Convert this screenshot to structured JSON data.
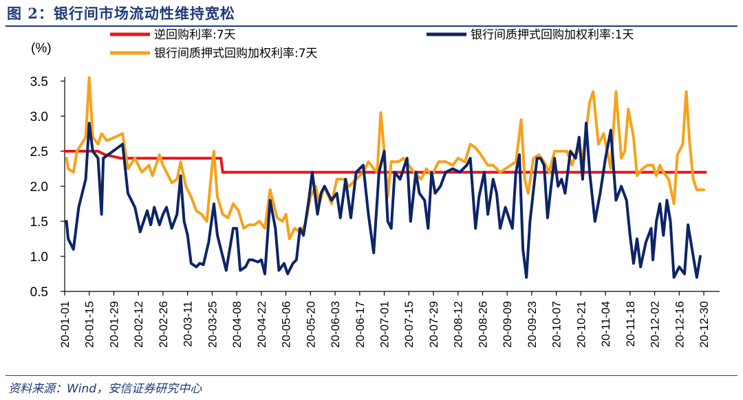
{
  "figure": {
    "title": "图 2：银行间市场流动性维持宽松",
    "source": "资料来源：Wind，安信证券研究中心"
  },
  "chart_data": {
    "type": "line",
    "unit_label": "(%)",
    "ylim": [
      0.5,
      3.5
    ],
    "y_ticks": [
      "3.5",
      "3.0",
      "2.5",
      "2.0",
      "1.5",
      "1.0",
      "0.5"
    ],
    "x_ticks": [
      "20-01-01",
      "20-01-15",
      "20-01-29",
      "20-02-12",
      "20-02-26",
      "20-03-11",
      "20-03-25",
      "20-04-08",
      "20-04-22",
      "20-05-06",
      "20-05-20",
      "20-06-03",
      "20-06-17",
      "20-07-01",
      "20-07-15",
      "20-07-29",
      "20-08-12",
      "20-08-26",
      "20-09-09",
      "20-09-23",
      "20-10-07",
      "20-10-21",
      "20-11-04",
      "20-11-18",
      "20-12-02",
      "20-12-16",
      "20-12-30"
    ],
    "legend_position": "top",
    "series": [
      {
        "name": "逆回购利率:7天",
        "color": "#e8141b",
        "points": [
          [
            "20-01-01",
            2.5
          ],
          [
            "20-01-20",
            2.5
          ],
          [
            "20-01-24",
            2.45
          ],
          [
            "20-02-02",
            2.4
          ],
          [
            "20-03-30",
            2.4
          ],
          [
            "20-03-31",
            2.2
          ],
          [
            "20-12-31",
            2.2
          ]
        ]
      },
      {
        "name": "银行间质押式回购加权利率:1天",
        "color": "#0d2467",
        "points": [
          [
            "20-01-02",
            1.5
          ],
          [
            "20-01-03",
            1.25
          ],
          [
            "20-01-06",
            1.1
          ],
          [
            "20-01-09",
            1.7
          ],
          [
            "20-01-13",
            2.1
          ],
          [
            "20-01-15",
            2.9
          ],
          [
            "20-01-17",
            2.5
          ],
          [
            "20-01-20",
            2.4
          ],
          [
            "20-01-22",
            1.6
          ],
          [
            "20-01-23",
            2.4
          ],
          [
            "20-02-03",
            2.6
          ],
          [
            "20-02-06",
            1.9
          ],
          [
            "20-02-10",
            1.7
          ],
          [
            "20-02-13",
            1.35
          ],
          [
            "20-02-17",
            1.65
          ],
          [
            "20-02-19",
            1.45
          ],
          [
            "20-02-21",
            1.7
          ],
          [
            "20-02-24",
            1.45
          ],
          [
            "20-02-26",
            1.6
          ],
          [
            "20-02-28",
            1.7
          ],
          [
            "20-03-02",
            1.4
          ],
          [
            "20-03-05",
            1.6
          ],
          [
            "20-03-07",
            2.15
          ],
          [
            "20-03-09",
            1.5
          ],
          [
            "20-03-11",
            1.3
          ],
          [
            "20-03-13",
            0.9
          ],
          [
            "20-03-16",
            0.85
          ],
          [
            "20-03-18",
            0.9
          ],
          [
            "20-03-20",
            0.88
          ],
          [
            "20-03-23",
            1.2
          ],
          [
            "20-03-26",
            1.75
          ],
          [
            "20-03-28",
            1.3
          ],
          [
            "20-03-31",
            1.0
          ],
          [
            "20-04-02",
            0.8
          ],
          [
            "20-04-06",
            1.4
          ],
          [
            "20-04-08",
            1.4
          ],
          [
            "20-04-10",
            0.8
          ],
          [
            "20-04-13",
            0.85
          ],
          [
            "20-04-15",
            0.95
          ],
          [
            "20-04-17",
            0.95
          ],
          [
            "20-04-20",
            0.92
          ],
          [
            "20-04-22",
            0.95
          ],
          [
            "20-04-24",
            0.75
          ],
          [
            "20-04-27",
            1.8
          ],
          [
            "20-04-30",
            1.4
          ],
          [
            "20-05-02",
            0.8
          ],
          [
            "20-05-05",
            0.9
          ],
          [
            "20-05-07",
            0.75
          ],
          [
            "20-05-10",
            0.9
          ],
          [
            "20-05-12",
            0.95
          ],
          [
            "20-05-14",
            1.4
          ],
          [
            "20-05-16",
            1.3
          ],
          [
            "20-05-19",
            1.8
          ],
          [
            "20-05-21",
            2.2
          ],
          [
            "20-05-24",
            1.6
          ],
          [
            "20-05-26",
            1.9
          ],
          [
            "20-05-28",
            2.0
          ],
          [
            "20-06-01",
            1.8
          ],
          [
            "20-06-04",
            1.9
          ],
          [
            "20-06-06",
            1.55
          ],
          [
            "20-06-09",
            2.1
          ],
          [
            "20-06-12",
            1.55
          ],
          [
            "20-06-15",
            2.2
          ],
          [
            "20-06-19",
            2.3
          ],
          [
            "20-06-22",
            1.6
          ],
          [
            "20-06-25",
            1.05
          ],
          [
            "20-06-28",
            2.2
          ],
          [
            "20-07-01",
            2.5
          ],
          [
            "20-07-03",
            1.5
          ],
          [
            "20-07-05",
            1.4
          ],
          [
            "20-07-07",
            2.2
          ],
          [
            "20-07-10",
            2.1
          ],
          [
            "20-07-14",
            2.4
          ],
          [
            "20-07-16",
            1.5
          ],
          [
            "20-07-19",
            2.2
          ],
          [
            "20-07-21",
            1.9
          ],
          [
            "20-07-24",
            1.8
          ],
          [
            "20-07-26",
            1.4
          ],
          [
            "20-07-28",
            2.2
          ],
          [
            "20-07-30",
            1.9
          ],
          [
            "20-08-02",
            2.0
          ],
          [
            "20-08-05",
            2.2
          ],
          [
            "20-08-09",
            2.25
          ],
          [
            "20-08-13",
            2.2
          ],
          [
            "20-08-17",
            2.3
          ],
          [
            "20-08-19",
            2.4
          ],
          [
            "20-08-22",
            1.4
          ],
          [
            "20-08-24",
            1.85
          ],
          [
            "20-08-27",
            2.2
          ],
          [
            "20-08-29",
            1.6
          ],
          [
            "20-09-01",
            2.1
          ],
          [
            "20-09-03",
            1.9
          ],
          [
            "20-09-05",
            1.4
          ],
          [
            "20-09-08",
            1.7
          ],
          [
            "20-09-12",
            1.4
          ],
          [
            "20-09-14",
            2.2
          ],
          [
            "20-09-16",
            2.45
          ],
          [
            "20-09-18",
            1.1
          ],
          [
            "20-09-20",
            0.7
          ],
          [
            "20-09-22",
            1.5
          ],
          [
            "20-09-26",
            2.4
          ],
          [
            "20-09-28",
            2.4
          ],
          [
            "20-09-30",
            2.3
          ],
          [
            "20-10-02",
            1.55
          ],
          [
            "20-10-04",
            2.0
          ],
          [
            "20-10-06",
            2.4
          ],
          [
            "20-10-08",
            2.0
          ],
          [
            "20-10-10",
            2.1
          ],
          [
            "20-10-12",
            1.9
          ],
          [
            "20-10-15",
            2.5
          ],
          [
            "20-10-18",
            2.4
          ],
          [
            "20-10-20",
            2.7
          ],
          [
            "20-10-22",
            2.1
          ],
          [
            "20-10-24",
            2.9
          ],
          [
            "20-10-26",
            2.2
          ],
          [
            "20-10-29",
            1.5
          ],
          [
            "20-11-01",
            1.9
          ],
          [
            "20-11-04",
            2.4
          ],
          [
            "20-11-07",
            2.8
          ],
          [
            "20-11-10",
            1.8
          ],
          [
            "20-11-13",
            2.0
          ],
          [
            "20-11-16",
            1.8
          ],
          [
            "20-11-18",
            1.3
          ],
          [
            "20-11-20",
            0.9
          ],
          [
            "20-11-22",
            1.25
          ],
          [
            "20-11-24",
            0.85
          ],
          [
            "20-11-27",
            1.2
          ],
          [
            "20-11-30",
            1.4
          ],
          [
            "20-12-01",
            0.95
          ],
          [
            "20-12-03",
            1.5
          ],
          [
            "20-12-05",
            1.75
          ],
          [
            "20-12-07",
            1.3
          ],
          [
            "20-12-09",
            1.8
          ],
          [
            "20-12-11",
            1.5
          ],
          [
            "20-12-13",
            0.7
          ],
          [
            "20-12-16",
            0.85
          ],
          [
            "20-12-19",
            0.75
          ],
          [
            "20-12-21",
            1.45
          ],
          [
            "20-12-24",
            1.0
          ],
          [
            "20-12-26",
            0.7
          ],
          [
            "20-12-28",
            1.0
          ]
        ]
      },
      {
        "name": "银行间质押式回购加权利率:7天",
        "color": "#f7a21b",
        "points": [
          [
            "20-01-02",
            2.4
          ],
          [
            "20-01-03",
            2.25
          ],
          [
            "20-01-06",
            2.2
          ],
          [
            "20-01-08",
            2.5
          ],
          [
            "20-01-13",
            2.7
          ],
          [
            "20-01-15",
            3.55
          ],
          [
            "20-01-17",
            2.7
          ],
          [
            "20-01-20",
            2.6
          ],
          [
            "20-01-22",
            2.75
          ],
          [
            "20-01-25",
            2.65
          ],
          [
            "20-02-03",
            2.75
          ],
          [
            "20-02-06",
            2.25
          ],
          [
            "20-02-10",
            2.4
          ],
          [
            "20-02-14",
            2.2
          ],
          [
            "20-02-18",
            2.3
          ],
          [
            "20-02-20",
            2.15
          ],
          [
            "20-02-24",
            2.45
          ],
          [
            "20-02-26",
            2.3
          ],
          [
            "20-03-02",
            2.05
          ],
          [
            "20-03-05",
            2.1
          ],
          [
            "20-03-07",
            2.35
          ],
          [
            "20-03-10",
            2.0
          ],
          [
            "20-03-13",
            1.85
          ],
          [
            "20-03-16",
            1.65
          ],
          [
            "20-03-19",
            1.6
          ],
          [
            "20-03-22",
            1.5
          ],
          [
            "20-03-25",
            2.3
          ],
          [
            "20-03-26",
            2.5
          ],
          [
            "20-03-28",
            1.85
          ],
          [
            "20-03-31",
            1.6
          ],
          [
            "20-04-03",
            1.55
          ],
          [
            "20-04-06",
            1.75
          ],
          [
            "20-04-09",
            1.65
          ],
          [
            "20-04-12",
            1.4
          ],
          [
            "20-04-15",
            1.45
          ],
          [
            "20-04-18",
            1.45
          ],
          [
            "20-04-21",
            1.5
          ],
          [
            "20-04-24",
            1.4
          ],
          [
            "20-04-27",
            1.95
          ],
          [
            "20-04-29",
            1.75
          ],
          [
            "20-05-01",
            1.55
          ],
          [
            "20-05-04",
            1.5
          ],
          [
            "20-05-06",
            1.6
          ],
          [
            "20-05-08",
            1.25
          ],
          [
            "20-05-11",
            1.4
          ],
          [
            "20-05-14",
            1.35
          ],
          [
            "20-05-17",
            1.45
          ],
          [
            "20-05-20",
            1.85
          ],
          [
            "20-05-23",
            2.0
          ],
          [
            "20-05-25",
            1.75
          ],
          [
            "20-05-28",
            2.0
          ],
          [
            "20-06-01",
            1.75
          ],
          [
            "20-06-04",
            2.1
          ],
          [
            "20-06-08",
            2.1
          ],
          [
            "20-06-11",
            2.0
          ],
          [
            "20-06-15",
            2.1
          ],
          [
            "20-06-19",
            2.2
          ],
          [
            "20-06-22",
            2.35
          ],
          [
            "20-06-25",
            2.25
          ],
          [
            "20-06-27",
            2.2
          ],
          [
            "20-06-29",
            3.05
          ],
          [
            "20-07-01",
            2.5
          ],
          [
            "20-07-03",
            1.85
          ],
          [
            "20-07-05",
            2.35
          ],
          [
            "20-07-09",
            2.35
          ],
          [
            "20-07-12",
            2.4
          ],
          [
            "20-07-15",
            2.3
          ],
          [
            "20-07-18",
            2.2
          ],
          [
            "20-07-22",
            2.1
          ],
          [
            "20-07-25",
            2.25
          ],
          [
            "20-07-28",
            2.15
          ],
          [
            "20-08-01",
            2.35
          ],
          [
            "20-08-05",
            2.35
          ],
          [
            "20-08-09",
            2.3
          ],
          [
            "20-08-12",
            2.4
          ],
          [
            "20-08-16",
            2.35
          ],
          [
            "20-08-19",
            2.6
          ],
          [
            "20-08-22",
            2.55
          ],
          [
            "20-08-25",
            2.45
          ],
          [
            "20-08-29",
            2.3
          ],
          [
            "20-09-01",
            2.3
          ],
          [
            "20-09-05",
            2.2
          ],
          [
            "20-09-08",
            2.25
          ],
          [
            "20-09-11",
            2.3
          ],
          [
            "20-09-14",
            2.35
          ],
          [
            "20-09-17",
            2.95
          ],
          [
            "20-09-19",
            2.1
          ],
          [
            "20-09-21",
            1.9
          ],
          [
            "20-09-24",
            2.4
          ],
          [
            "20-09-27",
            2.45
          ],
          [
            "20-09-30",
            2.35
          ],
          [
            "20-10-03",
            2.2
          ],
          [
            "20-10-06",
            2.5
          ],
          [
            "20-10-10",
            2.5
          ],
          [
            "20-10-13",
            2.5
          ],
          [
            "20-10-16",
            2.3
          ],
          [
            "20-10-19",
            2.55
          ],
          [
            "20-10-22",
            2.4
          ],
          [
            "20-10-26",
            3.2
          ],
          [
            "20-10-28",
            3.35
          ],
          [
            "20-10-31",
            2.6
          ],
          [
            "20-11-03",
            2.75
          ],
          [
            "20-11-07",
            2.25
          ],
          [
            "20-11-10",
            3.35
          ],
          [
            "20-11-13",
            2.4
          ],
          [
            "20-11-15",
            2.5
          ],
          [
            "20-11-17",
            3.1
          ],
          [
            "20-11-20",
            2.7
          ],
          [
            "20-11-22",
            2.15
          ],
          [
            "20-11-25",
            2.25
          ],
          [
            "20-11-28",
            2.3
          ],
          [
            "20-12-01",
            2.3
          ],
          [
            "20-12-03",
            2.15
          ],
          [
            "20-12-05",
            2.3
          ],
          [
            "20-12-07",
            2.2
          ],
          [
            "20-12-10",
            2.1
          ],
          [
            "20-12-13",
            1.75
          ],
          [
            "20-12-15",
            2.45
          ],
          [
            "20-12-18",
            2.6
          ],
          [
            "20-12-20",
            3.35
          ],
          [
            "20-12-22",
            2.6
          ],
          [
            "20-12-24",
            2.1
          ],
          [
            "20-12-26",
            1.95
          ],
          [
            "20-12-28",
            1.95
          ],
          [
            "20-12-30",
            1.95
          ]
        ]
      }
    ]
  }
}
